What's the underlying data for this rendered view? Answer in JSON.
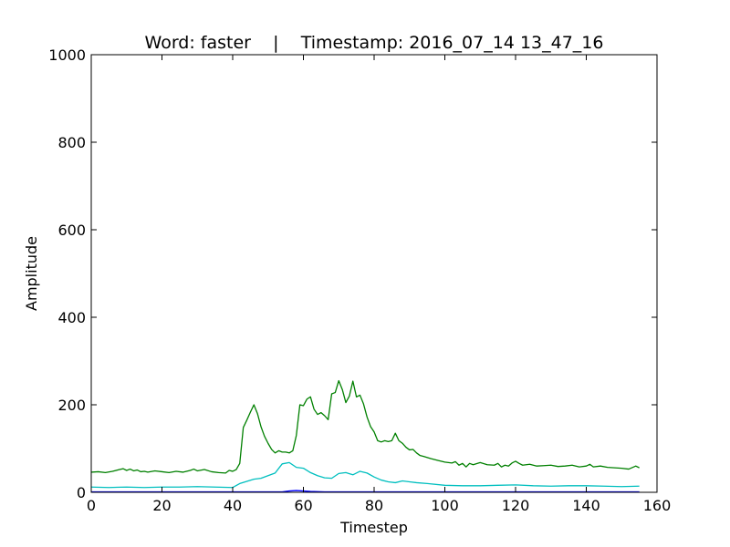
{
  "chart_data": {
    "type": "line",
    "title": "Word: faster    |    Timestamp: 2016_07_14 13_47_16",
    "xlabel": "Timestep",
    "ylabel": "Amplitude",
    "xlim": [
      0,
      160
    ],
    "ylim": [
      0,
      1000
    ],
    "xticks": [
      "0",
      "20",
      "40",
      "60",
      "80",
      "100",
      "120",
      "140",
      "160"
    ],
    "yticks": [
      "0",
      "200",
      "400",
      "600",
      "800",
      "1000"
    ],
    "grid": false,
    "legend": "none",
    "series": [
      {
        "color": "#008000",
        "x": [
          0,
          2,
          4,
          6,
          8,
          9,
          10,
          11,
          12,
          13,
          14,
          15,
          16,
          18,
          20,
          22,
          24,
          26,
          28,
          29,
          30,
          32,
          34,
          36,
          38,
          39,
          40,
          41,
          42,
          43,
          44,
          45,
          46,
          47,
          48,
          49,
          50,
          51,
          52,
          53,
          54,
          55,
          56,
          57,
          58,
          59,
          60,
          61,
          62,
          63,
          64,
          65,
          66,
          67,
          68,
          69,
          70,
          71,
          72,
          73,
          74,
          75,
          76,
          77,
          78,
          79,
          80,
          81,
          82,
          83,
          84,
          85,
          86,
          87,
          88,
          89,
          90,
          91,
          92,
          93,
          94,
          96,
          98,
          100,
          102,
          103,
          104,
          105,
          106,
          107,
          108,
          110,
          112,
          114,
          115,
          116,
          117,
          118,
          119,
          120,
          121,
          122,
          124,
          126,
          128,
          130,
          132,
          134,
          136,
          138,
          140,
          141,
          142,
          144,
          146,
          148,
          150,
          152,
          154,
          155
        ],
        "y": [
          46,
          47,
          45,
          48,
          52,
          54,
          50,
          53,
          49,
          51,
          47,
          48,
          46,
          49,
          47,
          45,
          48,
          46,
          50,
          53,
          49,
          52,
          47,
          45,
          44,
          50,
          48,
          52,
          66,
          148,
          165,
          183,
          200,
          180,
          150,
          128,
          112,
          98,
          90,
          95,
          92,
          92,
          90,
          95,
          130,
          200,
          198,
          213,
          218,
          190,
          178,
          182,
          175,
          166,
          225,
          228,
          255,
          235,
          205,
          220,
          254,
          218,
          222,
          202,
          172,
          150,
          138,
          118,
          115,
          118,
          116,
          118,
          135,
          118,
          112,
          103,
          97,
          98,
          90,
          84,
          82,
          77,
          73,
          69,
          67,
          70,
          62,
          66,
          58,
          66,
          63,
          68,
          63,
          62,
          66,
          58,
          62,
          60,
          67,
          71,
          66,
          62,
          64,
          60,
          61,
          62,
          59,
          60,
          62,
          58,
          60,
          64,
          58,
          60,
          57,
          56,
          55,
          53,
          60,
          56
        ]
      },
      {
        "color": "#00bfbf",
        "x": [
          0,
          5,
          10,
          15,
          20,
          25,
          30,
          35,
          40,
          42,
          44,
          46,
          48,
          50,
          52,
          54,
          56,
          58,
          60,
          62,
          64,
          66,
          68,
          70,
          72,
          74,
          76,
          78,
          80,
          82,
          84,
          86,
          88,
          90,
          92,
          95,
          100,
          105,
          110,
          115,
          120,
          125,
          130,
          135,
          140,
          145,
          150,
          155
        ],
        "y": [
          12,
          11,
          12,
          11,
          12,
          12,
          13,
          12,
          11,
          20,
          25,
          30,
          32,
          38,
          44,
          65,
          68,
          57,
          55,
          45,
          38,
          33,
          32,
          43,
          45,
          40,
          48,
          44,
          35,
          28,
          24,
          22,
          26,
          24,
          22,
          20,
          16,
          15,
          15,
          16,
          17,
          15,
          14,
          15,
          15,
          14,
          13,
          14
        ]
      },
      {
        "color": "#0000ff",
        "x": [
          0,
          50,
          54,
          56,
          58,
          60,
          62,
          66,
          80,
          100,
          155
        ],
        "y": [
          1,
          1,
          1,
          3,
          4,
          3,
          2,
          1,
          1,
          1,
          1
        ]
      }
    ]
  }
}
